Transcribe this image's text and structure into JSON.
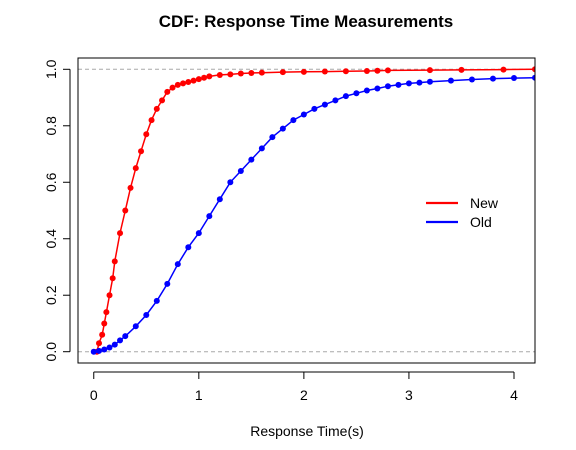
{
  "chart_data": {
    "type": "line",
    "title": "CDF: Response Time Measurements",
    "xlabel": "Response Time(s)",
    "ylabel": "",
    "xlim": [
      -0.15,
      4.2
    ],
    "ylim": [
      -0.04,
      1.04
    ],
    "x_ticks": [
      0,
      1,
      2,
      3,
      4
    ],
    "y_ticks": [
      0.0,
      0.2,
      0.4,
      0.6,
      0.8,
      1.0
    ],
    "x_tick_labels": [
      "0",
      "1",
      "2",
      "3",
      "4"
    ],
    "y_tick_labels": [
      "0.0",
      "0.2",
      "0.4",
      "0.6",
      "0.8",
      "1.0"
    ],
    "reference_lines": [
      0,
      1
    ],
    "legend_position": "right",
    "series": [
      {
        "name": "New",
        "color": "#ff0000",
        "x": [
          0.03,
          0.05,
          0.08,
          0.1,
          0.12,
          0.15,
          0.18,
          0.2,
          0.25,
          0.3,
          0.35,
          0.4,
          0.45,
          0.5,
          0.55,
          0.6,
          0.65,
          0.7,
          0.75,
          0.8,
          0.85,
          0.9,
          0.95,
          1.0,
          1.05,
          1.1,
          1.2,
          1.3,
          1.4,
          1.5,
          1.6,
          1.8,
          2.0,
          2.2,
          2.4,
          2.6,
          2.7,
          2.8,
          3.2,
          3.5,
          3.9,
          4.2
        ],
        "y": [
          0.0,
          0.03,
          0.06,
          0.1,
          0.14,
          0.2,
          0.26,
          0.32,
          0.42,
          0.5,
          0.58,
          0.65,
          0.71,
          0.77,
          0.82,
          0.86,
          0.89,
          0.92,
          0.935,
          0.945,
          0.95,
          0.955,
          0.96,
          0.965,
          0.97,
          0.975,
          0.98,
          0.982,
          0.985,
          0.987,
          0.988,
          0.99,
          0.991,
          0.992,
          0.993,
          0.994,
          0.995,
          0.996,
          0.997,
          0.998,
          0.999,
          1.0
        ]
      },
      {
        "name": "Old",
        "color": "#0000ff",
        "x": [
          0.0,
          0.05,
          0.1,
          0.15,
          0.2,
          0.25,
          0.3,
          0.4,
          0.5,
          0.6,
          0.7,
          0.8,
          0.9,
          1.0,
          1.1,
          1.2,
          1.3,
          1.4,
          1.5,
          1.6,
          1.7,
          1.8,
          1.9,
          2.0,
          2.1,
          2.2,
          2.3,
          2.4,
          2.5,
          2.6,
          2.7,
          2.8,
          2.9,
          3.0,
          3.1,
          3.2,
          3.4,
          3.6,
          3.8,
          4.0,
          4.2
        ],
        "y": [
          0.0,
          0.003,
          0.008,
          0.015,
          0.025,
          0.04,
          0.055,
          0.09,
          0.13,
          0.18,
          0.24,
          0.31,
          0.37,
          0.42,
          0.48,
          0.54,
          0.6,
          0.64,
          0.68,
          0.72,
          0.76,
          0.79,
          0.82,
          0.84,
          0.86,
          0.875,
          0.89,
          0.905,
          0.915,
          0.925,
          0.932,
          0.94,
          0.945,
          0.95,
          0.953,
          0.956,
          0.96,
          0.964,
          0.967,
          0.969,
          0.97
        ]
      }
    ]
  }
}
